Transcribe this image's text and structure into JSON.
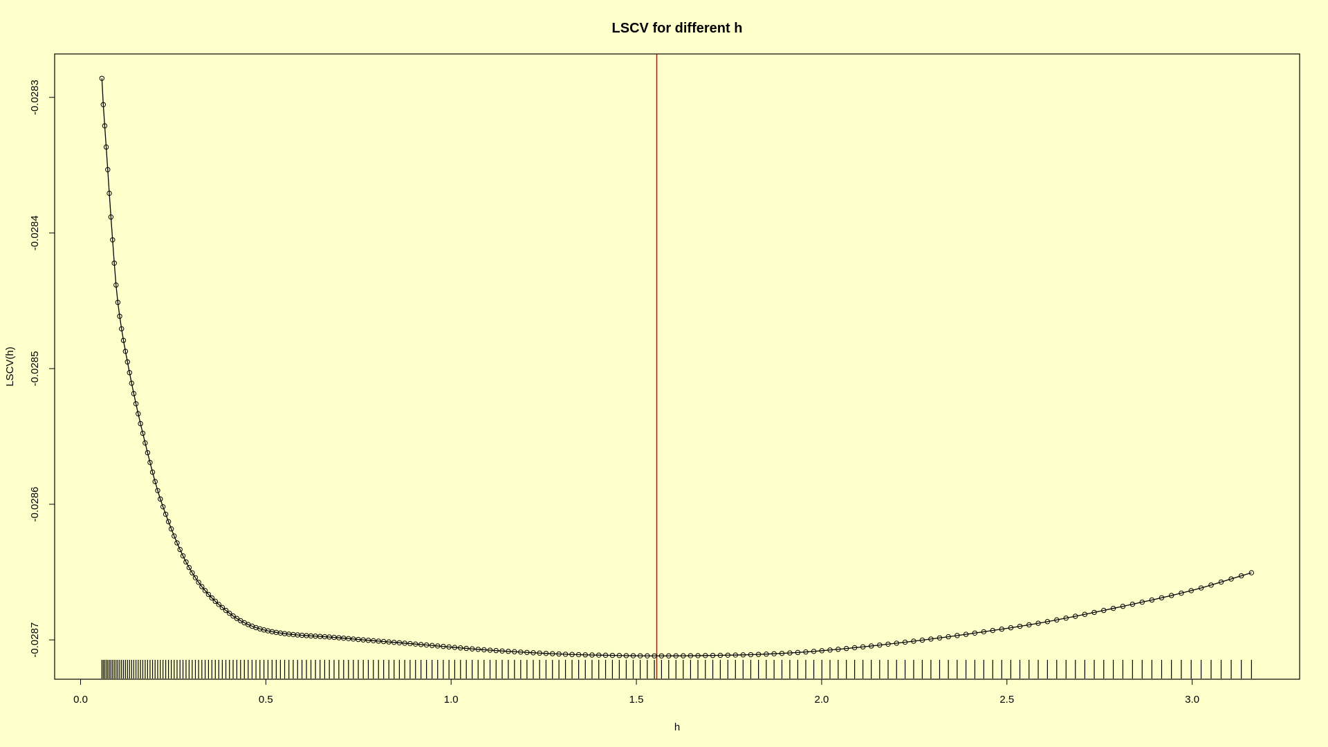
{
  "chart_data": {
    "type": "line",
    "title": "LSCV for different h",
    "xlabel": "h",
    "ylabel": "LSCV(h)",
    "xlim": [
      -0.07,
      3.29
    ],
    "ylim": [
      -0.028729,
      -0.028268
    ],
    "x_ticks": [
      0.0,
      0.5,
      1.0,
      1.5,
      2.0,
      2.5,
      3.0
    ],
    "x_tick_labels": [
      "0.0",
      "0.5",
      "1.0",
      "1.5",
      "2.0",
      "2.5",
      "3.0"
    ],
    "y_ticks": [
      -0.0283,
      -0.0284,
      -0.0285,
      -0.0286,
      -0.0287
    ],
    "y_tick_labels": [
      "-0.0283",
      "-0.0284",
      "-0.0285",
      "-0.0286",
      "-0.0287"
    ],
    "series": [
      {
        "markers": "open-circle",
        "line_color": "#000000",
        "h_min": 0.0575,
        "h_max": 3.16,
        "points": 200,
        "curve_knots": [
          [
            0.0575,
            -0.028286
          ],
          [
            0.06,
            -0.0283
          ],
          [
            0.07,
            -0.02834
          ],
          [
            0.085,
            -0.0284
          ],
          [
            0.1,
            -0.02845
          ],
          [
            0.13,
            -0.0285
          ],
          [
            0.17,
            -0.02855
          ],
          [
            0.22,
            -0.0286
          ],
          [
            0.3,
            -0.02865
          ],
          [
            0.4,
            -0.02868
          ],
          [
            0.5,
            -0.028693
          ],
          [
            0.7,
            -0.0286985
          ],
          [
            0.9,
            -0.028703
          ],
          [
            1.1,
            -0.0287075
          ],
          [
            1.3,
            -0.0287105
          ],
          [
            1.45,
            -0.0287115
          ],
          [
            1.55,
            -0.0287118
          ],
          [
            1.7,
            -0.0287115
          ],
          [
            1.85,
            -0.0287105
          ],
          [
            2.0,
            -0.028708
          ],
          [
            2.2,
            -0.0287025
          ],
          [
            2.4,
            -0.0286955
          ],
          [
            2.6,
            -0.028687
          ],
          [
            2.8,
            -0.028676
          ],
          [
            3.0,
            -0.0286635
          ],
          [
            3.16,
            -0.0286505
          ]
        ]
      }
    ],
    "vline": {
      "x": 1.555,
      "color": "#E00000"
    },
    "rug": "tick at each evaluated h along the bottom of the plot"
  }
}
